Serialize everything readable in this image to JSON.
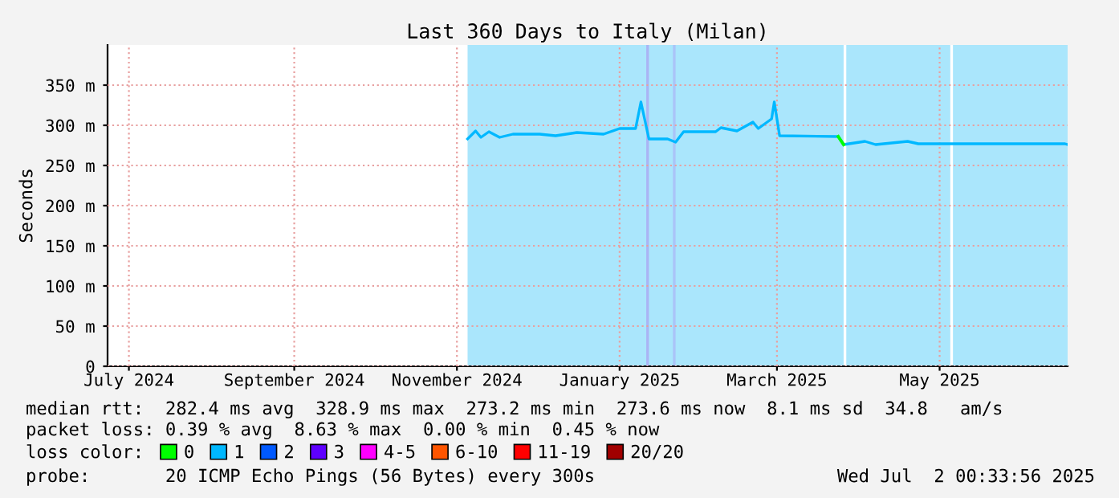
{
  "chart_data": {
    "type": "line",
    "title": "Last 360 Days to Italy (Milan)",
    "ylabel": "Seconds",
    "x": [
      "2024-11-19",
      "2024-11-22",
      "2024-11-24",
      "2024-11-27",
      "2024-12-01",
      "2024-12-06",
      "2024-12-16",
      "2024-12-22",
      "2024-12-30",
      "2025-01-09",
      "2025-01-15",
      "2025-01-21",
      "2025-01-23",
      "2025-01-26",
      "2025-02-02",
      "2025-02-05",
      "2025-02-08",
      "2025-02-20",
      "2025-02-22",
      "2025-02-28",
      "2025-03-06",
      "2025-03-08",
      "2025-03-13",
      "2025-03-14",
      "2025-03-16",
      "2025-04-07",
      "2025-04-09",
      "2025-04-17",
      "2025-04-21",
      "2025-05-03",
      "2025-05-07",
      "2025-05-19",
      "2025-07-01",
      "2025-07-02"
    ],
    "series": [
      {
        "name": "0",
        "color": "#00ff00",
        "values": [
          null,
          null,
          null,
          null,
          null,
          null,
          null,
          null,
          null,
          null,
          null,
          null,
          null,
          null,
          null,
          null,
          null,
          null,
          null,
          null,
          null,
          null,
          null,
          null,
          null,
          286,
          276,
          null,
          null,
          null,
          null,
          null,
          null,
          null
        ]
      },
      {
        "name": "1",
        "color": "#00b8ff",
        "values": [
          283,
          293,
          285,
          292,
          285,
          289,
          289,
          287,
          291,
          289,
          296,
          296,
          329,
          283,
          283,
          279,
          292,
          292,
          297,
          293,
          304,
          296,
          308,
          329,
          287,
          286,
          276,
          280,
          276,
          280,
          277,
          277,
          277,
          276
        ]
      },
      {
        "name": "2",
        "color": "#0059ff",
        "values": [
          null,
          null,
          null,
          null,
          null,
          null,
          null,
          null,
          null,
          null,
          null,
          null,
          null,
          null,
          null,
          null,
          null,
          null,
          null,
          null,
          null,
          null,
          null,
          null,
          null,
          null,
          null,
          null,
          null,
          null,
          null,
          null,
          null,
          null
        ]
      },
      {
        "name": "3",
        "color": "#5e00ff",
        "values": [
          null,
          null,
          null,
          null,
          null,
          null,
          null,
          null,
          null,
          null,
          null,
          null,
          null,
          null,
          null,
          null,
          null,
          null,
          null,
          null,
          null,
          null,
          null,
          null,
          null,
          null,
          null,
          null,
          null,
          null,
          null,
          null,
          null,
          null
        ]
      },
      {
        "name": "4-5",
        "color": "#ff00ff",
        "values": [
          null,
          null,
          null,
          null,
          null,
          null,
          null,
          null,
          null,
          null,
          null,
          null,
          null,
          null,
          null,
          null,
          null,
          null,
          null,
          null,
          null,
          null,
          null,
          null,
          null,
          null,
          null,
          null,
          null,
          null,
          null,
          null,
          null,
          null
        ]
      },
      {
        "name": "6-10",
        "color": "#ff5500",
        "values": [
          null,
          null,
          null,
          null,
          null,
          null,
          null,
          null,
          null,
          null,
          null,
          null,
          null,
          null,
          null,
          null,
          null,
          null,
          null,
          null,
          null,
          null,
          null,
          null,
          null,
          null,
          null,
          null,
          null,
          null,
          null,
          null,
          null,
          null
        ]
      },
      {
        "name": "11-19",
        "color": "#ff0000",
        "values": [
          null,
          null,
          null,
          null,
          null,
          null,
          null,
          null,
          null,
          null,
          null,
          null,
          null,
          null,
          null,
          null,
          null,
          null,
          null,
          null,
          null,
          null,
          null,
          null,
          null,
          null,
          null,
          null,
          null,
          null,
          null,
          null,
          null,
          null
        ]
      },
      {
        "name": "20/20",
        "color": "#a10000",
        "values": [
          null,
          null,
          null,
          null,
          null,
          null,
          null,
          null,
          null,
          null,
          null,
          null,
          null,
          null,
          null,
          null,
          null,
          null,
          null,
          null,
          null,
          null,
          null,
          null,
          null,
          null,
          null,
          null,
          null,
          null,
          null,
          null,
          null,
          null
        ]
      }
    ],
    "legend_title": "loss color:",
    "xlim": [
      "2024-07-07",
      "2025-07-02"
    ],
    "xticks": [
      {
        "value": "2024-07-15",
        "label": "July 2024"
      },
      {
        "value": "2024-09-15",
        "label": "September 2024"
      },
      {
        "value": "2024-11-15",
        "label": "November 2024"
      },
      {
        "value": "2025-01-15",
        "label": "January 2025"
      },
      {
        "value": "2025-03-15",
        "label": "March 2025"
      },
      {
        "value": "2025-05-15",
        "label": "May 2025"
      }
    ],
    "ylim": [
      0,
      400
    ],
    "yticks": [
      0,
      {
        "value": 50,
        "label": "50 m"
      },
      {
        "value": 100,
        "label": "100 m"
      },
      {
        "value": 150,
        "label": "150 m"
      },
      {
        "value": 200,
        "label": "200 m"
      },
      {
        "value": 250,
        "label": "250 m"
      },
      {
        "value": 300,
        "label": "300 m"
      },
      {
        "value": 350,
        "label": "350 m"
      }
    ],
    "bands": [
      {
        "axis": "x",
        "from": "2024-11-19",
        "to": "2025-04-09",
        "color": "#aae6fc"
      },
      {
        "axis": "x",
        "from": "2025-04-10",
        "to": "2025-05-19",
        "color": "#aae6fc"
      },
      {
        "axis": "x",
        "from": "2025-05-20",
        "to": "2025-07-02",
        "color": "#aae6fc"
      },
      {
        "axis": "x",
        "from": "2025-01-25",
        "to": "2025-01-26",
        "color": "#aab4f4"
      },
      {
        "axis": "x",
        "from": "2025-02-04",
        "to": "2025-02-05",
        "color": "#aac4f8"
      }
    ],
    "grid": true,
    "legend": "bottom",
    "annotations": [
      "median rtt:  282.4 ms avg  328.9 ms max  273.2 ms min  273.6 ms now  8.1 ms sd  34.8   am/s",
      "packet loss: 0.39 % avg  8.63 % max  0.00 % min  0.45 % now",
      "probe:       20 ICMP Echo Pings (56 Bytes) every 300s",
      "Wed Jul  2 00:33:56 2025"
    ]
  }
}
